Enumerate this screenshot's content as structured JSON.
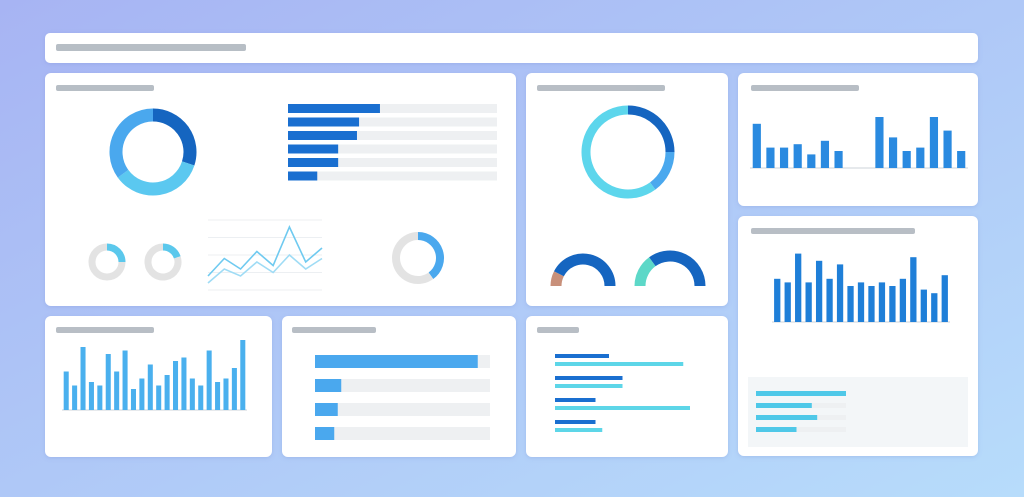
{
  "chart_data": [
    {
      "type": "donut",
      "values": [
        30,
        35,
        35
      ],
      "colors": [
        "#1565c0",
        "#5bc8f0",
        "#4aa8ee"
      ]
    },
    {
      "type": "hbar",
      "values": [
        44,
        34,
        33,
        24,
        24,
        14
      ],
      "xlim": [
        0,
        100
      ],
      "color": "#1a6fd0"
    },
    {
      "type": "donut",
      "values": [
        25,
        75
      ],
      "colors": [
        "#5bc8ec",
        "#e3e3e3"
      ]
    },
    {
      "type": "donut",
      "values": [
        20,
        80
      ],
      "colors": [
        "#5bc8ec",
        "#e3e3e3"
      ]
    },
    {
      "type": "line",
      "ylim": [
        0,
        100
      ],
      "series": [
        {
          "color": "#6fcaf0",
          "values": [
            20,
            45,
            30,
            55,
            35,
            90,
            40,
            60
          ]
        },
        {
          "color": "#9fdcf5",
          "values": [
            10,
            30,
            20,
            40,
            25,
            50,
            30,
            45
          ]
        }
      ]
    },
    {
      "type": "donut",
      "values": [
        40,
        60
      ],
      "colors": [
        "#4aa8ee",
        "#e3e3e3"
      ]
    },
    {
      "type": "donut",
      "values": [
        25,
        15,
        60
      ],
      "colors": [
        "#1565c0",
        "#4aa8ee",
        "#5dd6ec"
      ]
    },
    {
      "type": "gauge",
      "values": [
        15,
        85
      ],
      "colors": [
        "#c8907a",
        "#1565c0"
      ]
    },
    {
      "type": "gauge",
      "values": [
        30,
        70
      ],
      "colors": [
        "#5dd8c8",
        "#1565c0"
      ]
    },
    {
      "type": "bar",
      "ylim": [
        0,
        100
      ],
      "color": "#2a8ae0",
      "values": [
        65,
        30,
        30,
        35,
        20,
        40,
        25,
        0,
        0,
        75,
        45,
        25,
        30,
        75,
        55,
        25
      ]
    },
    {
      "type": "bar",
      "ylim": [
        0,
        100
      ],
      "color": "#1f7fd8",
      "values": [
        60,
        55,
        95,
        55,
        85,
        60,
        80,
        50,
        55,
        50,
        55,
        50,
        60,
        90,
        45,
        40,
        65
      ]
    },
    {
      "type": "hbar",
      "xlim": [
        0,
        100
      ],
      "color": "#4fc8e8",
      "values": [
        100,
        62,
        68,
        45
      ]
    },
    {
      "type": "bar",
      "ylim": [
        0,
        100
      ],
      "color": "#4ab0ee",
      "values": [
        55,
        35,
        90,
        40,
        35,
        80,
        55,
        85,
        30,
        45,
        65,
        35,
        50,
        70,
        75,
        45,
        35,
        85,
        40,
        45,
        60,
        100
      ]
    },
    {
      "type": "hbar",
      "xlim": [
        0,
        100
      ],
      "color": "#4aa8ee",
      "values": [
        93,
        15,
        13,
        11
      ]
    },
    {
      "type": "hbar2",
      "xlim": [
        0,
        100
      ],
      "series": [
        {
          "color": "#1a6fd0",
          "values": [
            40,
            50,
            30,
            30
          ]
        },
        {
          "color": "#5dd6e8",
          "values": [
            95,
            50,
            100,
            35
          ]
        }
      ]
    }
  ]
}
